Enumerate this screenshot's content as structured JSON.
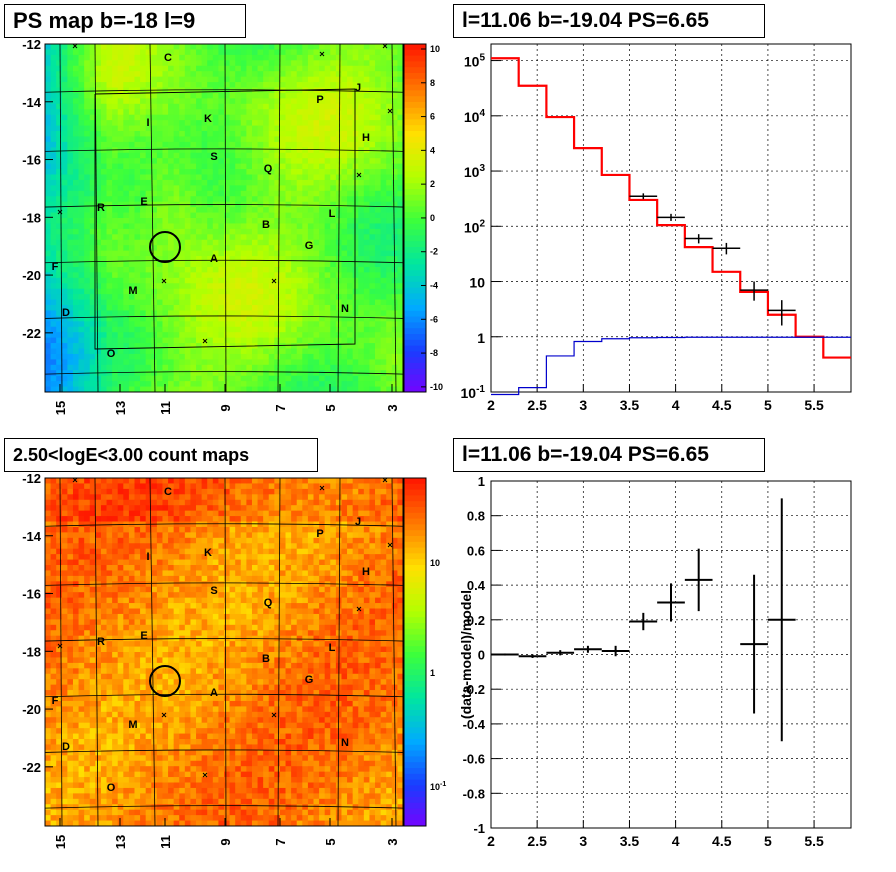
{
  "chart_data": [
    {
      "type": "heatmap",
      "title": "PS map b=-18 l=9",
      "x_ticks": [
        "15",
        "13",
        "11",
        "9",
        "7",
        "5",
        "3"
      ],
      "y_ticks": [
        "-12",
        "-14",
        "-16",
        "-18",
        "-20",
        "-22"
      ],
      "colorbar_ticks": [
        "10",
        "8",
        "6",
        "4",
        "2",
        "0",
        "-2",
        "-4",
        "-6",
        "-8",
        "-10"
      ],
      "zlim": [
        -10,
        10
      ],
      "source_labels": [
        "C",
        "J",
        "P",
        "K",
        "I",
        "H",
        "S",
        "Q",
        "E",
        "R",
        "L",
        "B",
        "G",
        "A",
        "M",
        "F",
        "N",
        "D",
        "O"
      ],
      "colormap": [
        "#7a00ff",
        "#1a3cff",
        "#00aaff",
        "#00e6a0",
        "#3cff3c",
        "#b4ff00",
        "#ffe000",
        "#ff7a00",
        "#ff1a00"
      ]
    },
    {
      "type": "line",
      "title": "l=11.06 b=-19.04 PS=6.65",
      "x_ticks": [
        "2",
        "2.5",
        "3",
        "3.5",
        "4",
        "4.5",
        "5",
        "5.5"
      ],
      "y_ticks": [
        {
          "b": "10",
          "e": "5"
        },
        {
          "b": "10",
          "e": "4"
        },
        {
          "b": "10",
          "e": "3"
        },
        {
          "b": "10",
          "e": "2"
        },
        {
          "b": "10",
          "e": ""
        },
        {
          "b": "1",
          "e": ""
        },
        {
          "b": "10",
          "e": "-1"
        }
      ],
      "xlim": [
        2.0,
        5.9
      ],
      "ylim_log10": [
        -1,
        5.3
      ],
      "log_y": true,
      "series": [
        {
          "color": "#ff0000",
          "edges": [
            2.0,
            2.3,
            2.6,
            2.9,
            3.2,
            3.5,
            3.8,
            4.1,
            4.4,
            4.7,
            5.0,
            5.3,
            5.6,
            5.9
          ],
          "values": [
            110000,
            35000,
            9500,
            2600,
            850,
            300,
            105,
            42,
            15,
            6.5,
            2.5,
            1.0,
            0.42
          ]
        },
        {
          "color": "#0000cc",
          "edges": [
            2.0,
            2.3,
            2.6,
            2.9,
            3.2,
            3.5,
            3.8,
            4.1,
            4.4,
            4.7,
            5.0,
            5.3,
            5.6,
            5.9
          ],
          "values": [
            0.09,
            0.12,
            0.45,
            0.82,
            0.92,
            0.96,
            0.97,
            0.98,
            0.98,
            0.98,
            0.98,
            0.98,
            0.98
          ]
        },
        {
          "color": "#000000",
          "points": [
            {
              "x": 3.65,
              "y": 350,
              "xe": 0.15,
              "lo": 310,
              "hi": 395
            },
            {
              "x": 3.95,
              "y": 145,
              "xe": 0.15,
              "lo": 125,
              "hi": 168
            },
            {
              "x": 4.25,
              "y": 60,
              "xe": 0.15,
              "lo": 49,
              "hi": 72
            },
            {
              "x": 4.55,
              "y": 40,
              "xe": 0.15,
              "lo": 31,
              "hi": 50
            },
            {
              "x": 4.85,
              "y": 7,
              "xe": 0.15,
              "lo": 4.5,
              "hi": 10
            },
            {
              "x": 5.15,
              "y": 3,
              "xe": 0.15,
              "lo": 1.6,
              "hi": 4.6
            }
          ]
        }
      ]
    },
    {
      "type": "heatmap",
      "title": "2.50<logE<3.00 count maps",
      "x_ticks": [
        "15",
        "13",
        "11",
        "9",
        "7",
        "5",
        "3"
      ],
      "y_ticks": [
        "-12",
        "-14",
        "-16",
        "-18",
        "-20",
        "-22"
      ],
      "colorbar_ticks": [
        "10",
        "1"
      ],
      "colorbar_tick_minus1": {
        "b": "10",
        "e": "-1"
      },
      "log_z": true,
      "source_labels": [
        "C",
        "J",
        "P",
        "K",
        "I",
        "H",
        "S",
        "Q",
        "E",
        "R",
        "L",
        "B",
        "G",
        "A",
        "M",
        "F",
        "N",
        "D",
        "O"
      ],
      "colormap": [
        "#7a00ff",
        "#1a3cff",
        "#00aaff",
        "#00e6a0",
        "#3cff3c",
        "#b4ff00",
        "#ffe000",
        "#ff7a00",
        "#ff1a00"
      ]
    },
    {
      "type": "scatter",
      "title": "l=11.06 b=-19.04 PS=6.65",
      "ylabel": "(data-model)/model",
      "x_ticks": [
        "2",
        "2.5",
        "3",
        "3.5",
        "4",
        "4.5",
        "5",
        "5.5"
      ],
      "y_ticks": [
        "1",
        "0.8",
        "0.6",
        "0.4",
        "0.2",
        "0",
        "-0.2",
        "-0.4",
        "-0.6",
        "-0.8",
        "-1"
      ],
      "xlim": [
        2.0,
        5.9
      ],
      "ylim": [
        -1,
        1
      ],
      "points": [
        {
          "x": 2.15,
          "y": 0.0,
          "xe": 0.15,
          "ye": 0.006
        },
        {
          "x": 2.45,
          "y": -0.01,
          "xe": 0.15,
          "ye": 0.01
        },
        {
          "x": 2.75,
          "y": 0.01,
          "xe": 0.15,
          "ye": 0.015
        },
        {
          "x": 3.05,
          "y": 0.03,
          "xe": 0.15,
          "ye": 0.02
        },
        {
          "x": 3.35,
          "y": 0.02,
          "xe": 0.15,
          "ye": 0.03
        },
        {
          "x": 3.65,
          "y": 0.19,
          "xe": 0.15,
          "ye": 0.05
        },
        {
          "x": 3.95,
          "y": 0.3,
          "xe": 0.15,
          "ye": 0.11
        },
        {
          "x": 4.25,
          "y": 0.43,
          "xe": 0.15,
          "ye": 0.18
        },
        {
          "x": 4.85,
          "y": 0.06,
          "xe": 0.15,
          "ye": 0.4
        },
        {
          "x": 5.15,
          "y": 0.2,
          "xe": 0.15,
          "ye": 0.7
        }
      ]
    }
  ]
}
